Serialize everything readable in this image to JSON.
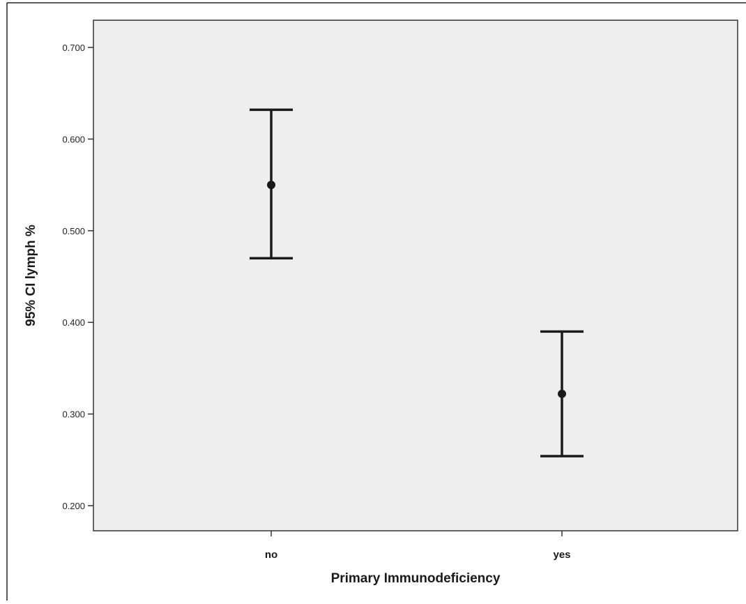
{
  "chart_data": {
    "type": "errorbar",
    "categories": [
      "no",
      "yes"
    ],
    "series": [
      {
        "mean": [
          0.55,
          0.322
        ],
        "lower": [
          0.47,
          0.254
        ],
        "upper": [
          0.632,
          0.39
        ]
      }
    ],
    "xlabel": "Primary Immunodeficiency",
    "ylabel": "95% CI lymph %",
    "yticks": [
      "0.200",
      "0.300",
      "0.400",
      "0.500",
      "0.600",
      "0.700"
    ],
    "ylim": [
      0.18,
      0.73
    ],
    "grid": false,
    "colors": {
      "plot_background": "#eeeeee",
      "marks": "#1a1a1a",
      "frame": "#333333"
    }
  }
}
